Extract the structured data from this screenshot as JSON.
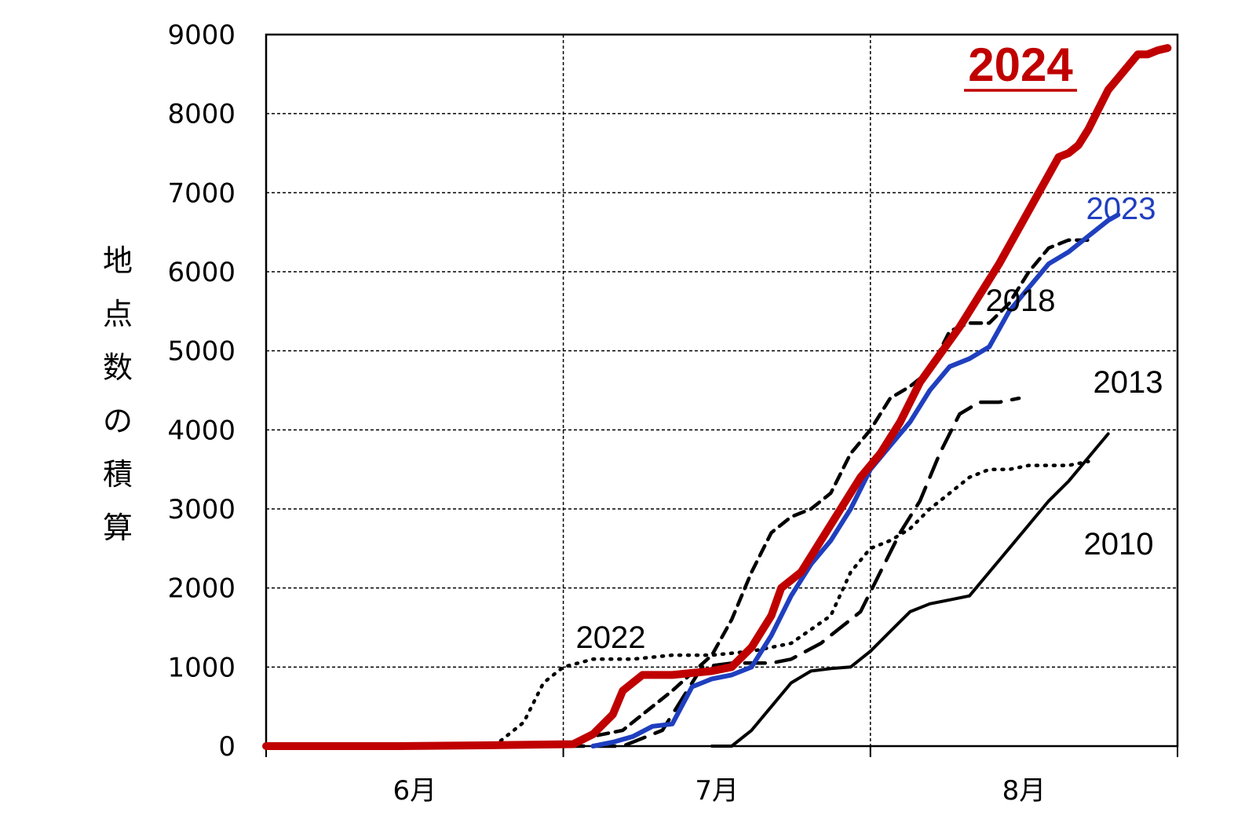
{
  "chart_data": {
    "type": "line",
    "title": "",
    "ylabel": "地点数の積算",
    "xlabel": "",
    "ylim": [
      0,
      9000
    ],
    "yticks": [
      0,
      1000,
      2000,
      3000,
      4000,
      5000,
      6000,
      7000,
      8000,
      9000
    ],
    "xlim": [
      0,
      92
    ],
    "x_unit": "days from June 1",
    "months": [
      {
        "label": "6月",
        "start": 0,
        "end": 30
      },
      {
        "label": "7月",
        "start": 30,
        "end": 61
      },
      {
        "label": "8月",
        "start": 61,
        "end": 92
      }
    ],
    "grid": true,
    "series": [
      {
        "name": "2024",
        "color": "#c00000",
        "style": "solid-bold",
        "points": [
          [
            0,
            0
          ],
          [
            13,
            0
          ],
          [
            22,
            10
          ],
          [
            28,
            20
          ],
          [
            31,
            25
          ],
          [
            33,
            150
          ],
          [
            35,
            400
          ],
          [
            36,
            700
          ],
          [
            38,
            900
          ],
          [
            41,
            900
          ],
          [
            45,
            950
          ],
          [
            47,
            1000
          ],
          [
            49,
            1250
          ],
          [
            51,
            1650
          ],
          [
            52,
            2000
          ],
          [
            54,
            2200
          ],
          [
            56,
            2600
          ],
          [
            58,
            3000
          ],
          [
            60,
            3400
          ],
          [
            62,
            3700
          ],
          [
            64,
            4100
          ],
          [
            66,
            4600
          ],
          [
            68,
            4950
          ],
          [
            70,
            5300
          ],
          [
            72,
            5700
          ],
          [
            74,
            6100
          ],
          [
            76,
            6550
          ],
          [
            78,
            7000
          ],
          [
            80,
            7450
          ],
          [
            81,
            7500
          ],
          [
            82,
            7600
          ],
          [
            83,
            7800
          ],
          [
            84,
            8050
          ],
          [
            85,
            8300
          ],
          [
            86,
            8450
          ],
          [
            87,
            8600
          ],
          [
            88,
            8750
          ],
          [
            89,
            8750
          ],
          [
            90,
            8800
          ],
          [
            91,
            8830
          ]
        ]
      },
      {
        "name": "2023",
        "color": "#1f3fbf",
        "style": "solid",
        "points": [
          [
            33,
            0
          ],
          [
            35,
            50
          ],
          [
            37,
            120
          ],
          [
            39,
            250
          ],
          [
            41,
            280
          ],
          [
            43,
            750
          ],
          [
            45,
            850
          ],
          [
            47,
            900
          ],
          [
            49,
            1000
          ],
          [
            51,
            1400
          ],
          [
            53,
            1900
          ],
          [
            55,
            2300
          ],
          [
            57,
            2600
          ],
          [
            59,
            3000
          ],
          [
            61,
            3500
          ],
          [
            63,
            3800
          ],
          [
            65,
            4100
          ],
          [
            67,
            4500
          ],
          [
            69,
            4800
          ],
          [
            71,
            4900
          ],
          [
            73,
            5050
          ],
          [
            75,
            5500
          ],
          [
            77,
            5800
          ],
          [
            79,
            6100
          ],
          [
            81,
            6250
          ],
          [
            83,
            6450
          ],
          [
            85,
            6650
          ],
          [
            86,
            6720
          ]
        ]
      },
      {
        "name": "2018",
        "color": "#000000",
        "style": "dashed",
        "points": [
          [
            30,
            0
          ],
          [
            32,
            100
          ],
          [
            34,
            150
          ],
          [
            36,
            200
          ],
          [
            38,
            400
          ],
          [
            41,
            700
          ],
          [
            45,
            1150
          ],
          [
            47,
            1600
          ],
          [
            49,
            2200
          ],
          [
            51,
            2700
          ],
          [
            53,
            2900
          ],
          [
            55,
            3000
          ],
          [
            57,
            3200
          ],
          [
            59,
            3700
          ],
          [
            61,
            4000
          ],
          [
            63,
            4400
          ],
          [
            65,
            4550
          ],
          [
            67,
            4750
          ],
          [
            69,
            5250
          ],
          [
            71,
            5350
          ],
          [
            73,
            5350
          ],
          [
            75,
            5600
          ],
          [
            77,
            6000
          ],
          [
            79,
            6300
          ],
          [
            81,
            6400
          ],
          [
            83,
            6400
          ]
        ]
      },
      {
        "name": "2022",
        "color": "#000000",
        "style": "dotted",
        "points": [
          [
            23,
            0
          ],
          [
            26,
            300
          ],
          [
            28,
            800
          ],
          [
            30,
            1000
          ],
          [
            33,
            1100
          ],
          [
            37,
            1100
          ],
          [
            41,
            1150
          ],
          [
            45,
            1150
          ],
          [
            49,
            1200
          ],
          [
            51,
            1250
          ],
          [
            53,
            1300
          ],
          [
            57,
            1650
          ],
          [
            59,
            2200
          ],
          [
            61,
            2500
          ],
          [
            63,
            2600
          ],
          [
            65,
            2750
          ],
          [
            67,
            3000
          ],
          [
            69,
            3200
          ],
          [
            71,
            3400
          ],
          [
            73,
            3500
          ],
          [
            75,
            3500
          ],
          [
            77,
            3550
          ],
          [
            79,
            3550
          ],
          [
            81,
            3550
          ],
          [
            83,
            3600
          ]
        ]
      },
      {
        "name": "2013",
        "color": "#000000",
        "style": "longdash",
        "points": [
          [
            30,
            0
          ],
          [
            36,
            0
          ],
          [
            40,
            200
          ],
          [
            44,
            1000
          ],
          [
            47,
            1050
          ],
          [
            49,
            1050
          ],
          [
            51,
            1050
          ],
          [
            53,
            1100
          ],
          [
            56,
            1300
          ],
          [
            58,
            1500
          ],
          [
            60,
            1700
          ],
          [
            62,
            2200
          ],
          [
            64,
            2700
          ],
          [
            66,
            3100
          ],
          [
            68,
            3700
          ],
          [
            70,
            4200
          ],
          [
            72,
            4350
          ],
          [
            74,
            4350
          ],
          [
            76,
            4400
          ]
        ]
      },
      {
        "name": "2010",
        "color": "#000000",
        "style": "solid-thin",
        "points": [
          [
            45,
            0
          ],
          [
            47,
            0
          ],
          [
            49,
            200
          ],
          [
            51,
            500
          ],
          [
            53,
            800
          ],
          [
            55,
            950
          ],
          [
            57,
            980
          ],
          [
            59,
            1000
          ],
          [
            61,
            1200
          ],
          [
            63,
            1450
          ],
          [
            65,
            1700
          ],
          [
            67,
            1800
          ],
          [
            69,
            1850
          ],
          [
            71,
            1900
          ],
          [
            73,
            2200
          ],
          [
            75,
            2500
          ],
          [
            77,
            2800
          ],
          [
            79,
            3100
          ],
          [
            81,
            3350
          ],
          [
            83,
            3650
          ],
          [
            85,
            3950
          ]
        ]
      }
    ],
    "labels": [
      {
        "series": "2024",
        "text": "2024",
        "underline": true
      },
      {
        "series": "2023",
        "text": "2023"
      },
      {
        "series": "2018",
        "text": "2018"
      },
      {
        "series": "2013",
        "text": "2013"
      },
      {
        "series": "2010",
        "text": "2010"
      },
      {
        "series": "2022",
        "text": "2022"
      }
    ]
  }
}
